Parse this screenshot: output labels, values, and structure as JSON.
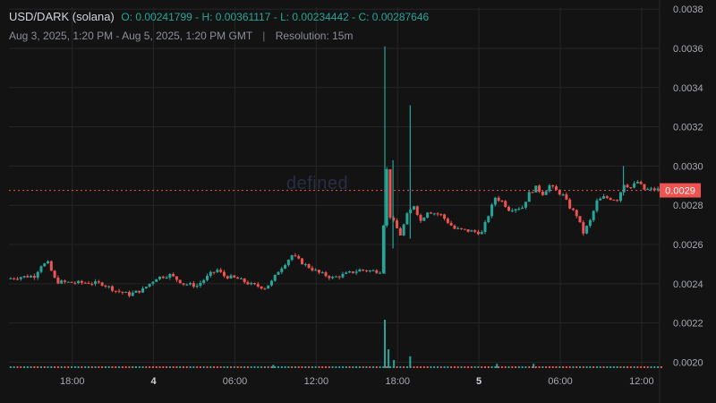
{
  "header": {
    "symbol": "USD/DARK (solana)",
    "ohlc_text": "O: 0.00241799 - H: 0.00361117 - L: 0.00234442 - C: 0.00287646",
    "date_range": "Aug 3, 2025, 1:20 PM - Aug 5, 2025, 1:20 PM GMT",
    "separator": "|",
    "resolution": "Resolution: 15m"
  },
  "watermark": "defined",
  "colors": {
    "background": "#131313",
    "up": "#26a69a",
    "down": "#ef5350",
    "grid": "#262626",
    "price_line": "#ef5350"
  },
  "chart_data": {
    "type": "candlestick",
    "y_ticks": [
      "0.0038",
      "0.0036",
      "0.0034",
      "0.0032",
      "0.0030",
      "0.0028",
      "0.0026",
      "0.0024",
      "0.0022",
      "0.0020"
    ],
    "ylim": [
      0.00197,
      0.00381
    ],
    "x_ticks": [
      {
        "label": "18:00",
        "hour": 4.67,
        "bold": false
      },
      {
        "label": "4",
        "hour": 10.67,
        "bold": true
      },
      {
        "label": "06:00",
        "hour": 16.67,
        "bold": false
      },
      {
        "label": "12:00",
        "hour": 22.67,
        "bold": false
      },
      {
        "label": "18:00",
        "hour": 28.67,
        "bold": false
      },
      {
        "label": "5",
        "hour": 34.67,
        "bold": true
      },
      {
        "label": "06:00",
        "hour": 40.67,
        "bold": false
      },
      {
        "label": "12:00",
        "hour": 46.67,
        "bold": false
      }
    ],
    "x_range_hours": [
      0,
      48
    ],
    "last_price": {
      "label": "0.0029",
      "value": 0.002876
    },
    "price_path": [
      [
        0,
        0.002425
      ],
      [
        1,
        0.002435
      ],
      [
        2,
        0.00244
      ],
      [
        2.5,
        0.002495
      ],
      [
        3,
        0.002505
      ],
      [
        3.6,
        0.00241
      ],
      [
        5,
        0.002405
      ],
      [
        6,
        0.002405
      ],
      [
        7,
        0.0024
      ],
      [
        8,
        0.002365
      ],
      [
        9,
        0.002345
      ],
      [
        10,
        0.00237
      ],
      [
        11,
        0.00243
      ],
      [
        12,
        0.002445
      ],
      [
        13,
        0.0024
      ],
      [
        14,
        0.00239
      ],
      [
        15,
        0.00245
      ],
      [
        15.5,
        0.00247
      ],
      [
        16,
        0.00244
      ],
      [
        17,
        0.002425
      ],
      [
        18,
        0.002395
      ],
      [
        19,
        0.00238
      ],
      [
        19.5,
        0.00241
      ],
      [
        20,
        0.002465
      ],
      [
        21,
        0.002545
      ],
      [
        22,
        0.002495
      ],
      [
        23,
        0.002455
      ],
      [
        24,
        0.00243
      ],
      [
        25,
        0.00245
      ],
      [
        26,
        0.00247
      ],
      [
        27,
        0.002465
      ],
      [
        27.5,
        0.002465
      ],
      [
        27.7,
        0.00265
      ],
      [
        28.0,
        0.00298
      ],
      [
        28.2,
        0.00275
      ],
      [
        29,
        0.00265
      ],
      [
        29.5,
        0.00275
      ],
      [
        30,
        0.0028
      ],
      [
        30.5,
        0.00272
      ],
      [
        31,
        0.00277
      ],
      [
        32,
        0.00275
      ],
      [
        33,
        0.00268
      ],
      [
        34,
        0.00267
      ],
      [
        35,
        0.00266
      ],
      [
        35.5,
        0.00275
      ],
      [
        36,
        0.00284
      ],
      [
        36.5,
        0.00282
      ],
      [
        37,
        0.00278
      ],
      [
        38,
        0.00279
      ],
      [
        38.5,
        0.00286
      ],
      [
        39,
        0.00289
      ],
      [
        39.5,
        0.00286
      ],
      [
        40,
        0.0029
      ],
      [
        41,
        0.00285
      ],
      [
        41.5,
        0.00279
      ],
      [
        42,
        0.00275
      ],
      [
        42.5,
        0.00266
      ],
      [
        43,
        0.00272
      ],
      [
        43.5,
        0.00282
      ],
      [
        44,
        0.00284
      ],
      [
        45,
        0.00283
      ],
      [
        45.5,
        0.00291
      ],
      [
        46,
        0.00289
      ],
      [
        46.5,
        0.00292
      ],
      [
        47,
        0.00288
      ],
      [
        48,
        0.00288
      ]
    ],
    "spikes": [
      {
        "hour": 27.73,
        "high": 0.00361,
        "low": 0.00245
      },
      {
        "hour": 28.33,
        "high": 0.00303,
        "low": 0.00258
      },
      {
        "hour": 29.6,
        "high": 0.00331,
        "low": 0.00263
      },
      {
        "hour": 45.33,
        "high": 0.003,
        "low": 0.00285
      }
    ],
    "volume_spikes": [
      {
        "hour": 27.73,
        "height": 0.9
      },
      {
        "hour": 28.0,
        "height": 0.35
      },
      {
        "hour": 29.6,
        "height": 0.22
      },
      {
        "hour": 28.4,
        "height": 0.15
      },
      {
        "hour": 36.0,
        "height": 0.08
      },
      {
        "hour": 38.7,
        "height": 0.08
      },
      {
        "hour": 19.5,
        "height": 0.06
      }
    ]
  }
}
